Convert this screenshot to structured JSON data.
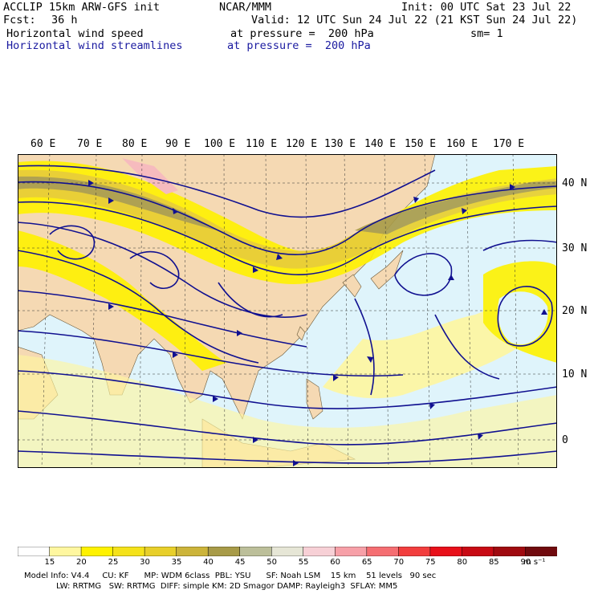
{
  "header": {
    "model": "ACCLIP 15km ARW-GFS init",
    "org": "NCAR/MMM",
    "init": "Init: 00 UTC Sat 23 Jul 22",
    "fcst_label": "Fcst:",
    "fcst_value": "36 h",
    "valid": "Valid: 12 UTC Sun 24 Jul 22 (21 KST Sun 24 Jul 22)",
    "field1": "Horizontal wind speed",
    "field1_level": "at pressure =  200 hPa",
    "sm": "sm= 1",
    "field2": "Horizontal wind streamlines",
    "field2_level": "at pressure =  200 hPa"
  },
  "map": {
    "lon_labels": [
      "60 E",
      "70 E",
      "80 E",
      "90 E",
      "100 E",
      "110 E",
      "120 E",
      "130 E",
      "140 E",
      "150 E",
      "160 E",
      "170 E"
    ],
    "lat_labels": [
      "40 N",
      "30 N",
      "20 N",
      "10 N",
      "0"
    ],
    "colors": {
      "ocean": "#dff4fb",
      "land": "#f5d9b3",
      "speed_15": "#fff7a0",
      "speed_20": "#fff200",
      "speed_25": "#f5e21a",
      "speed_30": "#e8cf2a",
      "speed_35": "#ccb43a",
      "speed_40": "#a89b48",
      "speed_45": "#bcbf9a",
      "speed_55": "#f7b8c0",
      "streamline": "#101090"
    }
  },
  "colorbar": {
    "labels": [
      "15",
      "20",
      "25",
      "30",
      "35",
      "40",
      "45",
      "50",
      "55",
      "60",
      "65",
      "70",
      "75",
      "80",
      "85",
      "90"
    ],
    "unit": "m s⁻¹",
    "colors": [
      "#ffffff",
      "#fff7a0",
      "#fff200",
      "#f5e21a",
      "#e8cf2a",
      "#ccb43a",
      "#a89b48",
      "#bcbf9a",
      "#e6e6d6",
      "#f7d0d6",
      "#f7a0a8",
      "#f56e72",
      "#f23e3e",
      "#e8101a",
      "#c80a14",
      "#a00a10",
      "#700a0e"
    ]
  },
  "footer": {
    "line1": "Model Info: V4.4     CU: KF      MP: WDM 6class  PBL: YSU      SF: Noah LSM    15 km    51 levels   90 sec",
    "line2": "LW: RRTMG   SW: RRTMG  DIFF: simple KM: 2D Smagor DAMP: Rayleigh3  SFLAY: MM5"
  }
}
